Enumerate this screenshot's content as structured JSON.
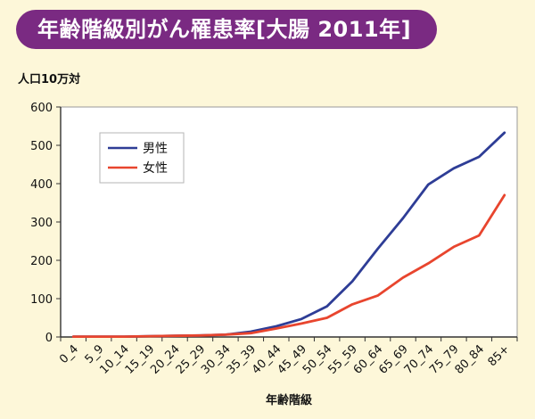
{
  "title": "年齢階級別がん罹患率[大腸 2011年]",
  "colors": {
    "background": "#fdf7d9",
    "title_bg": "#7a2a82",
    "title_text": "#ffffff",
    "male": "#2e3d96",
    "female": "#e8452e"
  },
  "chart_data": {
    "type": "line",
    "title": "年齢階級別がん罹患率[大腸 2011年]",
    "ylabel": "人口10万対",
    "xlabel": "年齢階級",
    "ylim": [
      0,
      600
    ],
    "yticks": [
      0,
      100,
      200,
      300,
      400,
      500,
      600
    ],
    "grid": false,
    "legend_position": "top-left",
    "categories": [
      "0_4",
      "5_9",
      "10_14",
      "15_19",
      "20_24",
      "25_29",
      "30_34",
      "35_39",
      "40_44",
      "45_49",
      "50_54",
      "55_59",
      "60_64",
      "65_69",
      "70_74",
      "75_79",
      "80_84",
      "85+"
    ],
    "series": [
      {
        "name": "男性",
        "color": "#2e3d96",
        "values": [
          1,
          1,
          1,
          2,
          3,
          4,
          6,
          14,
          28,
          47,
          80,
          145,
          230,
          310,
          398,
          440,
          470,
          533
        ]
      },
      {
        "name": "女性",
        "color": "#e8452e",
        "values": [
          1,
          1,
          1,
          2,
          3,
          4,
          6,
          10,
          22,
          35,
          50,
          85,
          108,
          155,
          192,
          235,
          265,
          370
        ]
      }
    ]
  }
}
